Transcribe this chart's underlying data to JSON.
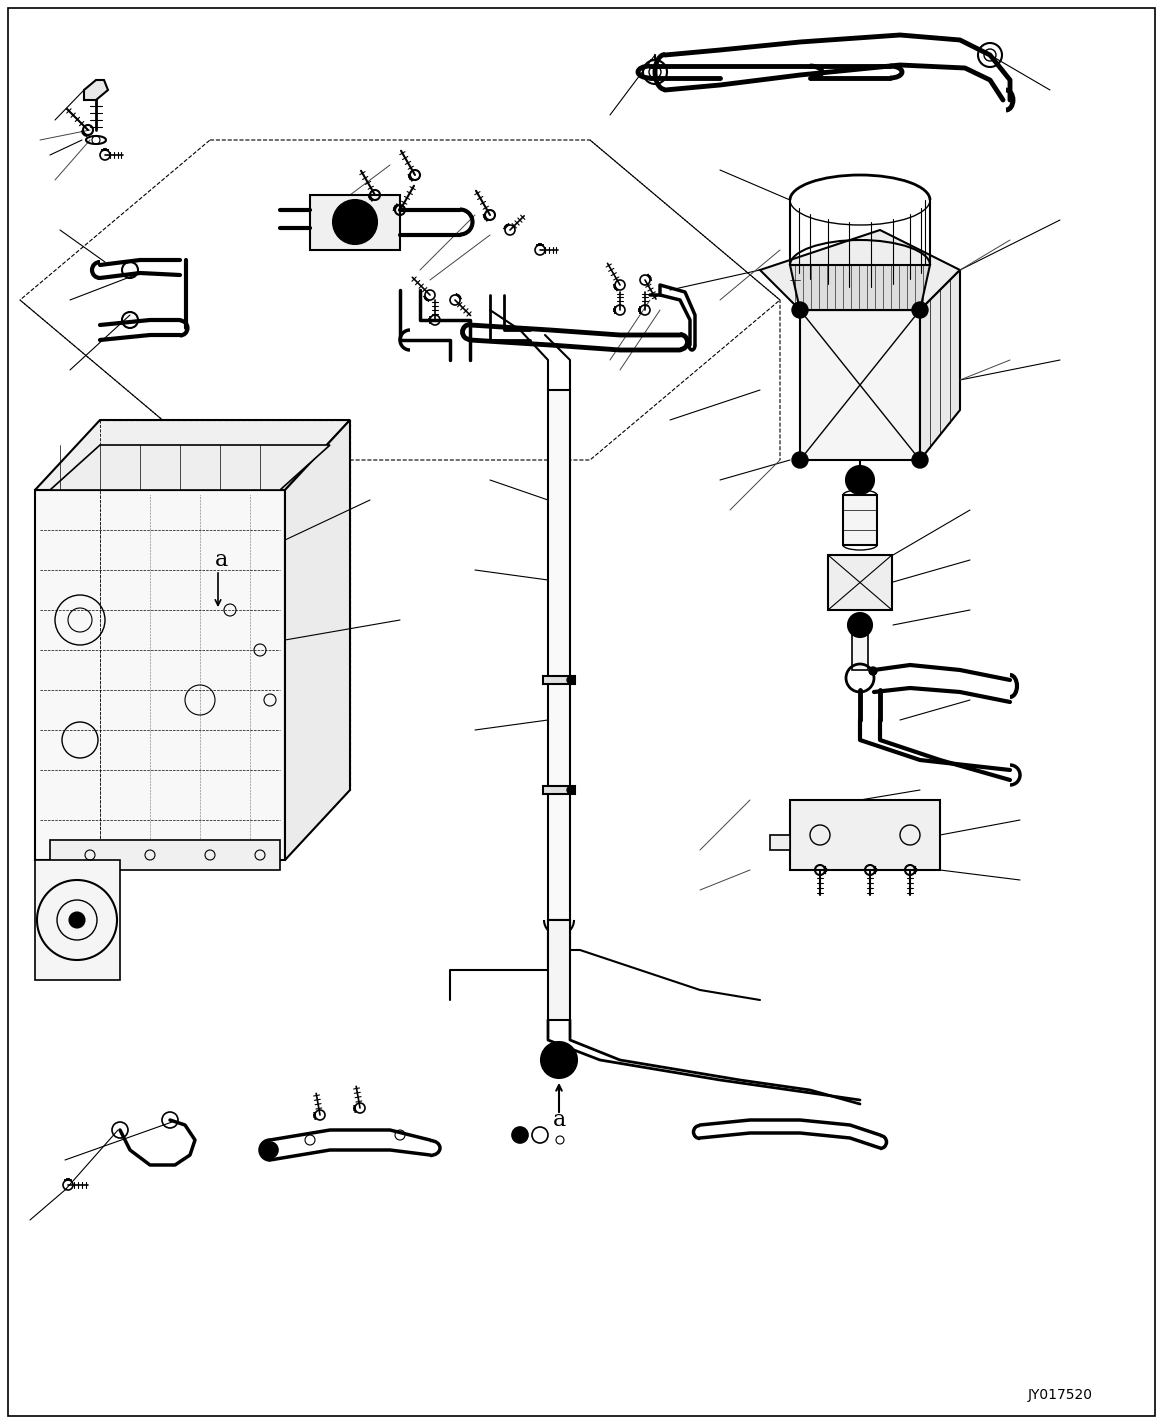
{
  "bg_color": "#ffffff",
  "line_color": "#000000",
  "fig_width": 11.63,
  "fig_height": 14.24,
  "dpi": 100,
  "watermark": "JY017520",
  "border": [
    8,
    8,
    1147,
    1408
  ]
}
